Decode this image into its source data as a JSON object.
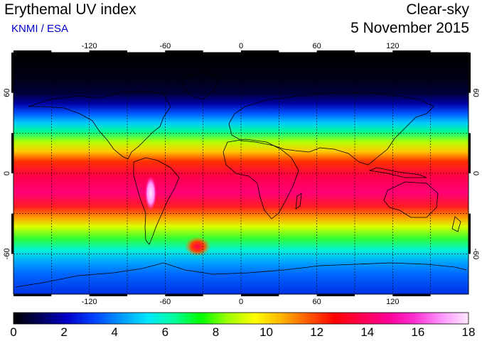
{
  "header": {
    "title": "Erythemal UV index",
    "subtitle": "KNMI / ESA",
    "condition": "Clear-sky",
    "date": "5 November 2015"
  },
  "map": {
    "longitude_ticks": [
      "-120",
      "-60",
      "0",
      "60",
      "120"
    ],
    "latitude_ticks": [
      "60",
      "0",
      "-60"
    ],
    "grid_longitudes": [
      -150,
      -120,
      -90,
      -60,
      -30,
      0,
      30,
      60,
      90,
      120,
      150
    ],
    "grid_latitudes": [
      60,
      30,
      0,
      -30,
      -60
    ]
  },
  "colorbar": {
    "labels": [
      "0",
      "2",
      "4",
      "6",
      "8",
      "10",
      "12",
      "14",
      "16",
      "18"
    ],
    "min": 0,
    "max": 18,
    "colors": [
      "#000000",
      "#00005a",
      "#0000c8",
      "#0040ff",
      "#0096ff",
      "#00e6ff",
      "#00ff9c",
      "#00ff00",
      "#9cff00",
      "#ffff00",
      "#ffb400",
      "#ff5a00",
      "#ff0000",
      "#ff0050",
      "#ff0096",
      "#ff32d2",
      "#ff96ff",
      "#ffe6ff"
    ]
  },
  "colors": {
    "subtitle": "#0000cc"
  }
}
